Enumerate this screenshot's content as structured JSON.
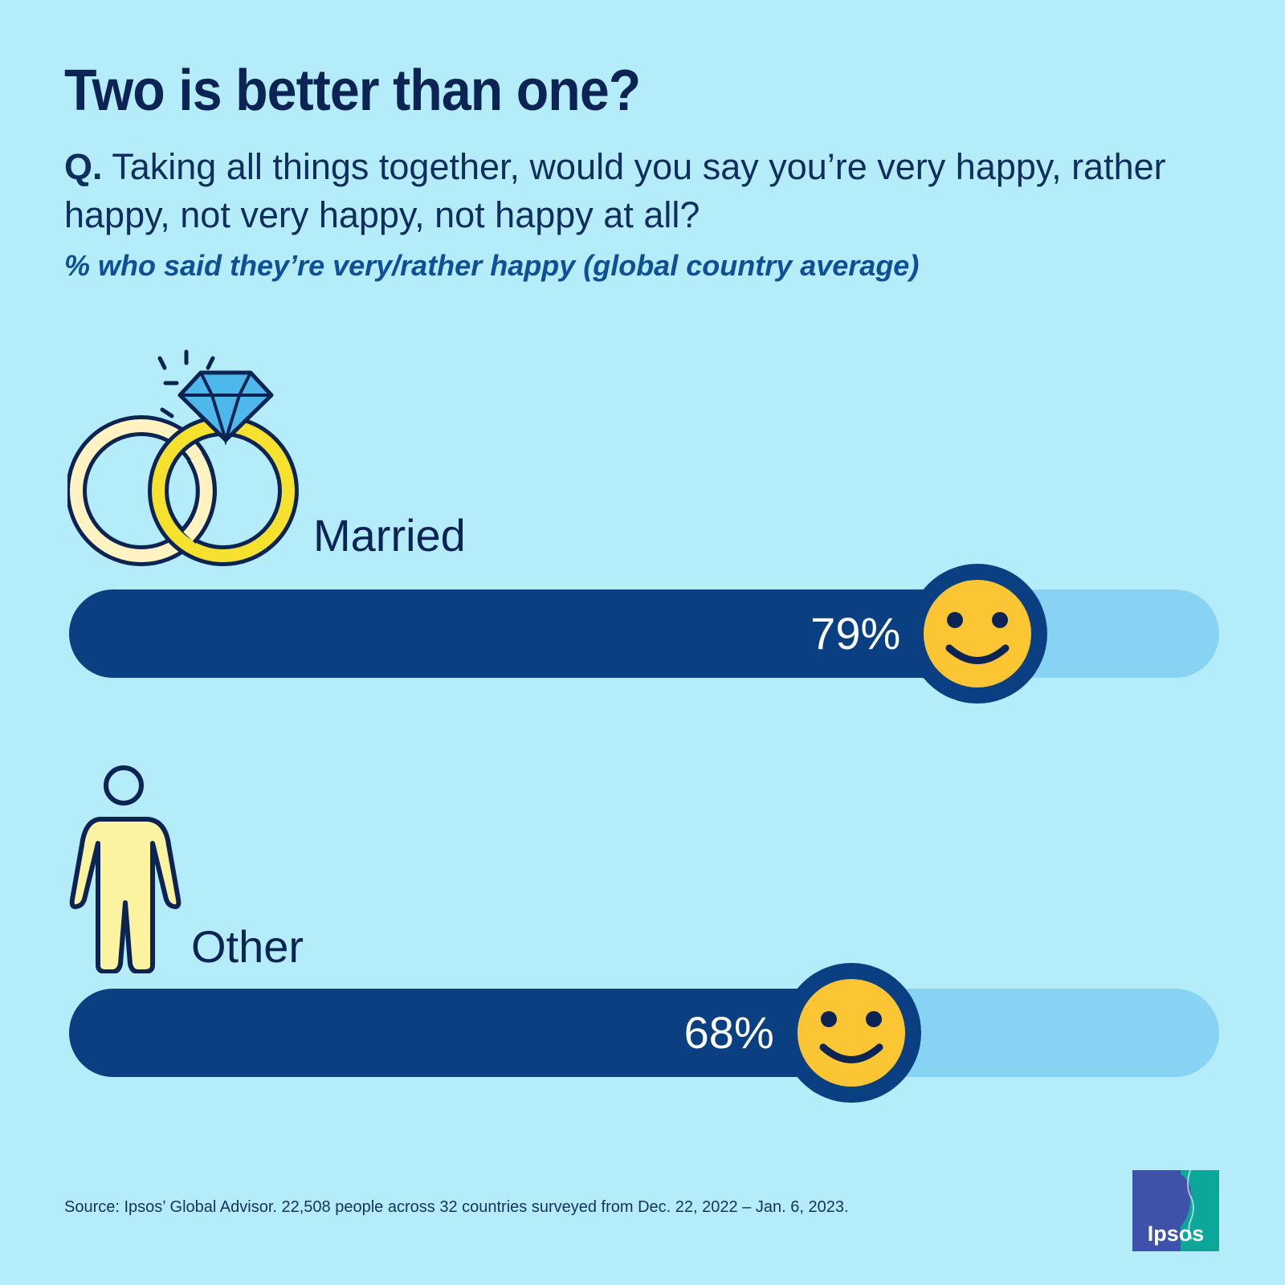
{
  "header": {
    "title": "Two is better than one?",
    "question_prefix": "Q.",
    "question": "Taking all things together, would you say you’re very happy, rather happy, not very happy, not happy at all?",
    "subtitle": "% who said they’re very/rather happy (global country average)"
  },
  "chart_data": {
    "type": "bar",
    "orientation": "horizontal",
    "title": "Two is better than one?",
    "categories": [
      "Married",
      "Other"
    ],
    "values": [
      79,
      68
    ],
    "value_labels": [
      "79%",
      "68%"
    ],
    "xlim": [
      0,
      100
    ],
    "grid": false,
    "colors": {
      "fill": "#0a4082",
      "track": "#86d3f4",
      "smiley": "#fcc534"
    }
  },
  "icons": {
    "married": "wedding-rings-icon",
    "other": "person-icon",
    "marker": "smiley-face-icon"
  },
  "footer": {
    "source": "Source: Ipsos’ Global Advisor. 22,508 people across 32 countries surveyed from Dec. 22, 2022 – Jan. 6, 2023.",
    "logo_text": "Ipsos"
  },
  "colors": {
    "background": "#b4ecf9",
    "title": "#0b2454",
    "subtitle": "#0e4f96"
  }
}
